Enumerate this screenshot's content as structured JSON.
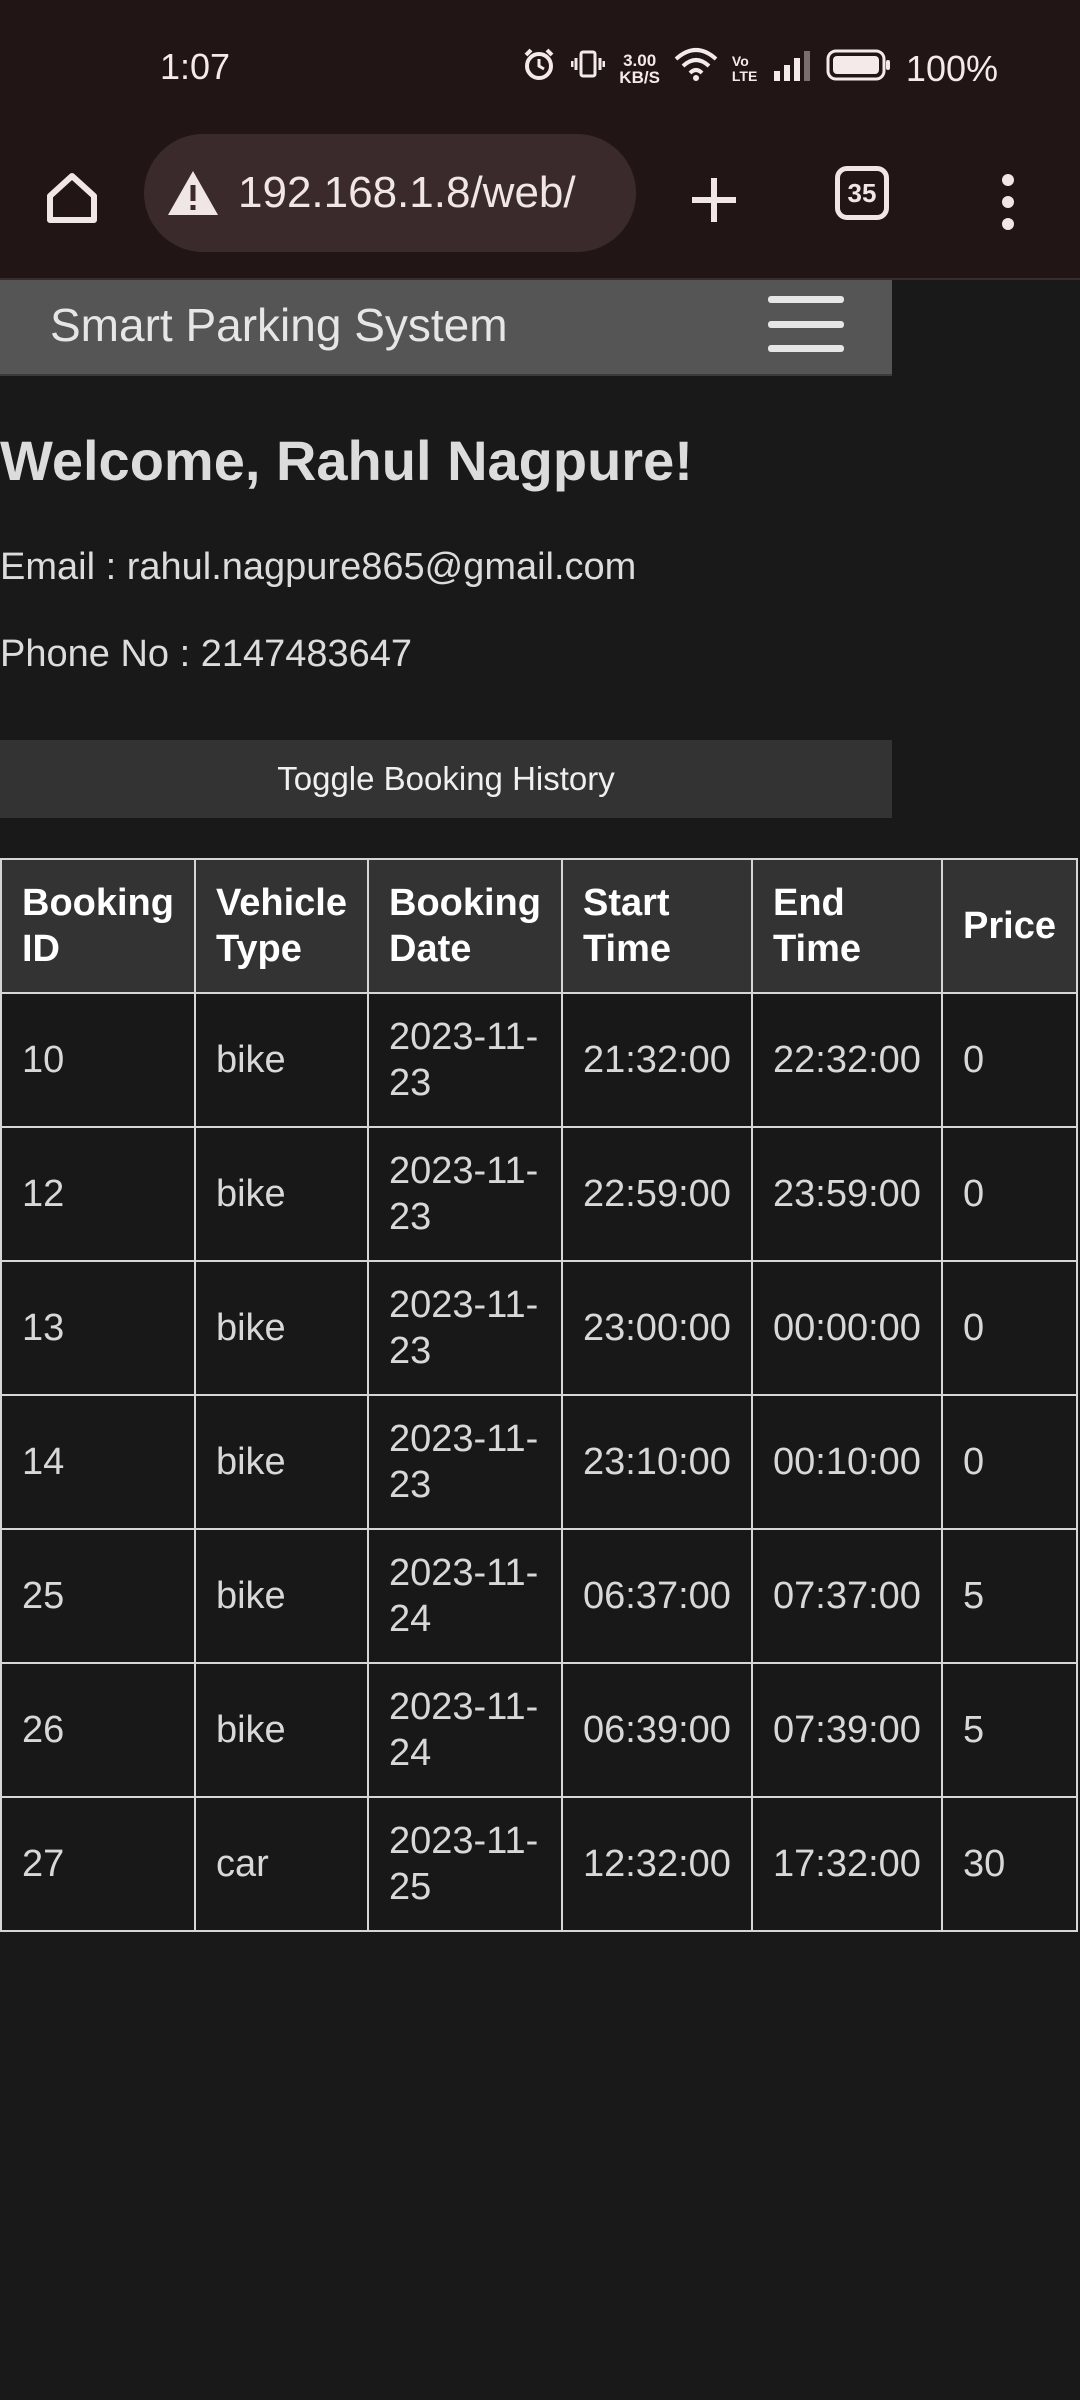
{
  "status_bar": {
    "time": "1:07",
    "net_speed_value": "3.00",
    "net_speed_unit": "KB/S",
    "volte": "Vo LTE",
    "battery": "100%"
  },
  "browser": {
    "url": "192.168.1.8/web/",
    "tab_count": "35"
  },
  "navbar": {
    "title": "Smart Parking System"
  },
  "profile": {
    "welcome": "Welcome, Rahul Nagpure!",
    "email_line": "Email : rahul.nagpure865@gmail.com",
    "phone_line": "Phone No : 2147483647"
  },
  "toggle_button": "Toggle Booking History",
  "table": {
    "headers": [
      "Booking ID",
      "Vehicle Type",
      "Booking Date",
      "Start Time",
      "End Time",
      "Price"
    ],
    "rows": [
      [
        "10",
        "bike",
        "2023-11-23",
        "21:32:00",
        "22:32:00",
        "0"
      ],
      [
        "12",
        "bike",
        "2023-11-23",
        "22:59:00",
        "23:59:00",
        "0"
      ],
      [
        "13",
        "bike",
        "2023-11-23",
        "23:00:00",
        "00:00:00",
        "0"
      ],
      [
        "14",
        "bike",
        "2023-11-23",
        "23:10:00",
        "00:10:00",
        "0"
      ],
      [
        "25",
        "bike",
        "2023-11-24",
        "06:37:00",
        "07:37:00",
        "5"
      ],
      [
        "26",
        "bike",
        "2023-11-24",
        "06:39:00",
        "07:39:00",
        "5"
      ],
      [
        "27",
        "car",
        "2023-11-25",
        "12:32:00",
        "17:32:00",
        "30"
      ]
    ]
  },
  "icons": {
    "alarm": "alarm-icon",
    "vibrate": "vibrate-icon",
    "wifi": "wifi-icon",
    "signal": "signal-icon",
    "battery": "battery-icon",
    "home": "home-icon",
    "warning": "warning-icon",
    "plus": "plus-icon",
    "more": "more-vert-icon",
    "hamburger": "hamburger-icon"
  }
}
